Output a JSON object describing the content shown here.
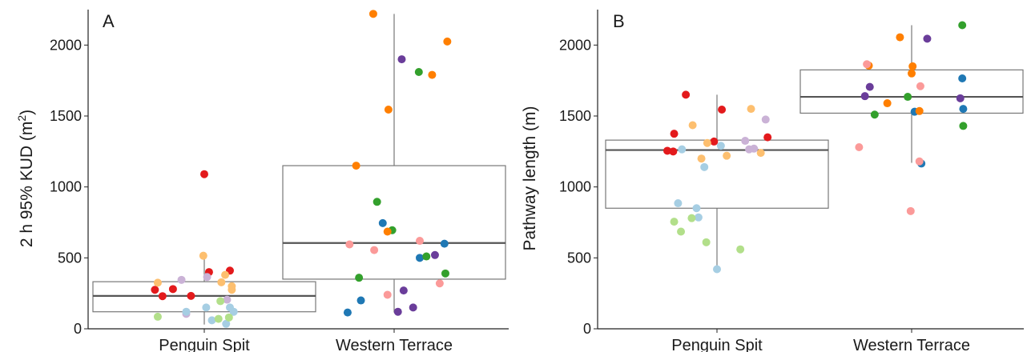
{
  "chart_data": [
    {
      "type": "box",
      "panel_label": "A",
      "ylabel": "2 h 95% KUD (m²)",
      "xlabel": "",
      "ylim": [
        0,
        2250
      ],
      "yticks": [
        0,
        500,
        1000,
        1500,
        2000
      ],
      "grid": false,
      "categories": [
        "Penguin Spit",
        "Western Terrace"
      ],
      "boxes": [
        {
          "category": "Penguin Spit",
          "q1": 120,
          "median": 232,
          "q3": 332,
          "whisker_low": 30,
          "whisker_high": 515
        },
        {
          "category": "Western Terrace",
          "q1": 350,
          "median": 605,
          "q3": 1150,
          "whisker_low": 115,
          "whisker_high": 2220
        }
      ],
      "points": [
        {
          "category": "Penguin Spit",
          "jitter": -0.52,
          "y": 275,
          "color": "#e31a1c"
        },
        {
          "category": "Penguin Spit",
          "jitter": -0.44,
          "y": 230,
          "color": "#e31a1c"
        },
        {
          "category": "Penguin Spit",
          "jitter": -0.33,
          "y": 280,
          "color": "#e31a1c"
        },
        {
          "category": "Penguin Spit",
          "jitter": 0.0,
          "y": 1090,
          "color": "#e31a1c"
        },
        {
          "category": "Penguin Spit",
          "jitter": 0.05,
          "y": 400,
          "color": "#e31a1c"
        },
        {
          "category": "Penguin Spit",
          "jitter": 0.27,
          "y": 410,
          "color": "#e31a1c"
        },
        {
          "category": "Penguin Spit",
          "jitter": -0.14,
          "y": 232,
          "color": "#e31a1c"
        },
        {
          "category": "Penguin Spit",
          "jitter": -0.49,
          "y": 325,
          "color": "#fdbf6f"
        },
        {
          "category": "Penguin Spit",
          "jitter": -0.01,
          "y": 515,
          "color": "#fdbf6f"
        },
        {
          "category": "Penguin Spit",
          "jitter": 0.18,
          "y": 328,
          "color": "#fdbf6f"
        },
        {
          "category": "Penguin Spit",
          "jitter": 0.22,
          "y": 380,
          "color": "#fdbf6f"
        },
        {
          "category": "Penguin Spit",
          "jitter": 0.29,
          "y": 275,
          "color": "#fdbf6f"
        },
        {
          "category": "Penguin Spit",
          "jitter": 0.29,
          "y": 300,
          "color": "#fdbf6f"
        },
        {
          "category": "Penguin Spit",
          "jitter": -0.24,
          "y": 345,
          "color": "#cab2d6"
        },
        {
          "category": "Penguin Spit",
          "jitter": 0.03,
          "y": 365,
          "color": "#cab2d6"
        },
        {
          "category": "Penguin Spit",
          "jitter": 0.24,
          "y": 205,
          "color": "#cab2d6"
        },
        {
          "category": "Penguin Spit",
          "jitter": -0.19,
          "y": 105,
          "color": "#cab2d6"
        },
        {
          "category": "Penguin Spit",
          "jitter": -0.19,
          "y": 120,
          "color": "#a6cee3"
        },
        {
          "category": "Penguin Spit",
          "jitter": 0.02,
          "y": 150,
          "color": "#a6cee3"
        },
        {
          "category": "Penguin Spit",
          "jitter": 0.08,
          "y": 60,
          "color": "#a6cee3"
        },
        {
          "category": "Penguin Spit",
          "jitter": 0.23,
          "y": 35,
          "color": "#a6cee3"
        },
        {
          "category": "Penguin Spit",
          "jitter": 0.27,
          "y": 150,
          "color": "#a6cee3"
        },
        {
          "category": "Penguin Spit",
          "jitter": 0.31,
          "y": 120,
          "color": "#a6cee3"
        },
        {
          "category": "Penguin Spit",
          "jitter": -0.49,
          "y": 85,
          "color": "#b2df8a"
        },
        {
          "category": "Penguin Spit",
          "jitter": 0.15,
          "y": 70,
          "color": "#b2df8a"
        },
        {
          "category": "Penguin Spit",
          "jitter": 0.17,
          "y": 195,
          "color": "#b2df8a"
        },
        {
          "category": "Penguin Spit",
          "jitter": 0.26,
          "y": 80,
          "color": "#b2df8a"
        },
        {
          "category": "Western Terrace",
          "jitter": -0.49,
          "y": 115,
          "color": "#1f78b4"
        },
        {
          "category": "Western Terrace",
          "jitter": -0.35,
          "y": 200,
          "color": "#1f78b4"
        },
        {
          "category": "Western Terrace",
          "jitter": -0.12,
          "y": 745,
          "color": "#1f78b4"
        },
        {
          "category": "Western Terrace",
          "jitter": 0.27,
          "y": 500,
          "color": "#1f78b4"
        },
        {
          "category": "Western Terrace",
          "jitter": 0.53,
          "y": 600,
          "color": "#1f78b4"
        },
        {
          "category": "Western Terrace",
          "jitter": -0.37,
          "y": 360,
          "color": "#33a02c"
        },
        {
          "category": "Western Terrace",
          "jitter": -0.18,
          "y": 895,
          "color": "#33a02c"
        },
        {
          "category": "Western Terrace",
          "jitter": -0.02,
          "y": 695,
          "color": "#33a02c"
        },
        {
          "category": "Western Terrace",
          "jitter": 0.26,
          "y": 1810,
          "color": "#33a02c"
        },
        {
          "category": "Western Terrace",
          "jitter": 0.34,
          "y": 510,
          "color": "#33a02c"
        },
        {
          "category": "Western Terrace",
          "jitter": 0.54,
          "y": 390,
          "color": "#33a02c"
        },
        {
          "category": "Western Terrace",
          "jitter": -0.4,
          "y": 1150,
          "color": "#ff7f00"
        },
        {
          "category": "Western Terrace",
          "jitter": -0.22,
          "y": 2220,
          "color": "#ff7f00"
        },
        {
          "category": "Western Terrace",
          "jitter": -0.06,
          "y": 1545,
          "color": "#ff7f00"
        },
        {
          "category": "Western Terrace",
          "jitter": -0.07,
          "y": 685,
          "color": "#ff7f00"
        },
        {
          "category": "Western Terrace",
          "jitter": 0.4,
          "y": 1790,
          "color": "#ff7f00"
        },
        {
          "category": "Western Terrace",
          "jitter": 0.56,
          "y": 2025,
          "color": "#ff7f00"
        },
        {
          "category": "Western Terrace",
          "jitter": 0.08,
          "y": 1900,
          "color": "#6a3d9a"
        },
        {
          "category": "Western Terrace",
          "jitter": 0.1,
          "y": 270,
          "color": "#6a3d9a"
        },
        {
          "category": "Western Terrace",
          "jitter": 0.2,
          "y": 150,
          "color": "#6a3d9a"
        },
        {
          "category": "Western Terrace",
          "jitter": 0.04,
          "y": 120,
          "color": "#6a3d9a"
        },
        {
          "category": "Western Terrace",
          "jitter": 0.43,
          "y": 520,
          "color": "#6a3d9a"
        },
        {
          "category": "Western Terrace",
          "jitter": -0.47,
          "y": 595,
          "color": "#fb9a99"
        },
        {
          "category": "Western Terrace",
          "jitter": -0.21,
          "y": 555,
          "color": "#fb9a99"
        },
        {
          "category": "Western Terrace",
          "jitter": -0.07,
          "y": 240,
          "color": "#fb9a99"
        },
        {
          "category": "Western Terrace",
          "jitter": 0.27,
          "y": 620,
          "color": "#fb9a99"
        },
        {
          "category": "Western Terrace",
          "jitter": 0.48,
          "y": 320,
          "color": "#fb9a99"
        }
      ]
    },
    {
      "type": "box",
      "panel_label": "B",
      "ylabel": "Pathway length (m)",
      "xlabel": "",
      "ylim": [
        0,
        2250
      ],
      "yticks": [
        0,
        500,
        1000,
        1500,
        2000
      ],
      "grid": false,
      "categories": [
        "Penguin Spit",
        "Western Terrace"
      ],
      "boxes": [
        {
          "category": "Penguin Spit",
          "q1": 850,
          "median": 1260,
          "q3": 1330,
          "whisker_low": 420,
          "whisker_high": 1650
        },
        {
          "category": "Western Terrace",
          "q1": 1520,
          "median": 1635,
          "q3": 1825,
          "whisker_low": 1170,
          "whisker_high": 2140
        }
      ],
      "points": [
        {
          "category": "Penguin Spit",
          "jitter": -0.51,
          "y": 1255,
          "color": "#e31a1c"
        },
        {
          "category": "Penguin Spit",
          "jitter": -0.45,
          "y": 1250,
          "color": "#e31a1c"
        },
        {
          "category": "Penguin Spit",
          "jitter": -0.44,
          "y": 1375,
          "color": "#e31a1c"
        },
        {
          "category": "Penguin Spit",
          "jitter": -0.32,
          "y": 1650,
          "color": "#e31a1c"
        },
        {
          "category": "Penguin Spit",
          "jitter": -0.03,
          "y": 1320,
          "color": "#e31a1c"
        },
        {
          "category": "Penguin Spit",
          "jitter": 0.05,
          "y": 1545,
          "color": "#e31a1c"
        },
        {
          "category": "Penguin Spit",
          "jitter": 0.52,
          "y": 1350,
          "color": "#e31a1c"
        },
        {
          "category": "Penguin Spit",
          "jitter": -0.25,
          "y": 1435,
          "color": "#fdbf6f"
        },
        {
          "category": "Penguin Spit",
          "jitter": -0.16,
          "y": 1200,
          "color": "#fdbf6f"
        },
        {
          "category": "Penguin Spit",
          "jitter": -0.1,
          "y": 1310,
          "color": "#fdbf6f"
        },
        {
          "category": "Penguin Spit",
          "jitter": 0.1,
          "y": 1220,
          "color": "#fdbf6f"
        },
        {
          "category": "Penguin Spit",
          "jitter": 0.35,
          "y": 1550,
          "color": "#fdbf6f"
        },
        {
          "category": "Penguin Spit",
          "jitter": 0.45,
          "y": 1240,
          "color": "#fdbf6f"
        },
        {
          "category": "Penguin Spit",
          "jitter": 0.29,
          "y": 1325,
          "color": "#cab2d6"
        },
        {
          "category": "Penguin Spit",
          "jitter": 0.33,
          "y": 1265,
          "color": "#cab2d6"
        },
        {
          "category": "Penguin Spit",
          "jitter": 0.38,
          "y": 1270,
          "color": "#cab2d6"
        },
        {
          "category": "Penguin Spit",
          "jitter": 0.5,
          "y": 1475,
          "color": "#cab2d6"
        },
        {
          "category": "Penguin Spit",
          "jitter": -0.36,
          "y": 1265,
          "color": "#a6cee3"
        },
        {
          "category": "Penguin Spit",
          "jitter": -0.4,
          "y": 885,
          "color": "#a6cee3"
        },
        {
          "category": "Penguin Spit",
          "jitter": -0.13,
          "y": 1140,
          "color": "#a6cee3"
        },
        {
          "category": "Penguin Spit",
          "jitter": -0.21,
          "y": 850,
          "color": "#a6cee3"
        },
        {
          "category": "Penguin Spit",
          "jitter": -0.19,
          "y": 785,
          "color": "#a6cee3"
        },
        {
          "category": "Penguin Spit",
          "jitter": 0.04,
          "y": 1290,
          "color": "#a6cee3"
        },
        {
          "category": "Penguin Spit",
          "jitter": 0.0,
          "y": 420,
          "color": "#a6cee3"
        },
        {
          "category": "Penguin Spit",
          "jitter": -0.44,
          "y": 755,
          "color": "#b2df8a"
        },
        {
          "category": "Penguin Spit",
          "jitter": -0.37,
          "y": 685,
          "color": "#b2df8a"
        },
        {
          "category": "Penguin Spit",
          "jitter": -0.26,
          "y": 780,
          "color": "#b2df8a"
        },
        {
          "category": "Penguin Spit",
          "jitter": -0.11,
          "y": 610,
          "color": "#b2df8a"
        },
        {
          "category": "Penguin Spit",
          "jitter": 0.24,
          "y": 560,
          "color": "#b2df8a"
        },
        {
          "category": "Western Terrace",
          "jitter": 0.1,
          "y": 1165,
          "color": "#1f78b4"
        },
        {
          "category": "Western Terrace",
          "jitter": 0.03,
          "y": 1530,
          "color": "#1f78b4"
        },
        {
          "category": "Western Terrace",
          "jitter": 0.52,
          "y": 1765,
          "color": "#1f78b4"
        },
        {
          "category": "Western Terrace",
          "jitter": 0.53,
          "y": 1550,
          "color": "#1f78b4"
        },
        {
          "category": "Western Terrace",
          "jitter": -0.38,
          "y": 1510,
          "color": "#33a02c"
        },
        {
          "category": "Western Terrace",
          "jitter": -0.04,
          "y": 1635,
          "color": "#33a02c"
        },
        {
          "category": "Western Terrace",
          "jitter": 0.52,
          "y": 2140,
          "color": "#33a02c"
        },
        {
          "category": "Western Terrace",
          "jitter": 0.53,
          "y": 1430,
          "color": "#33a02c"
        },
        {
          "category": "Western Terrace",
          "jitter": -0.44,
          "y": 1855,
          "color": "#ff7f00"
        },
        {
          "category": "Western Terrace",
          "jitter": -0.25,
          "y": 1590,
          "color": "#ff7f00"
        },
        {
          "category": "Western Terrace",
          "jitter": 0.0,
          "y": 1800,
          "color": "#ff7f00"
        },
        {
          "category": "Western Terrace",
          "jitter": 0.01,
          "y": 1850,
          "color": "#ff7f00"
        },
        {
          "category": "Western Terrace",
          "jitter": 0.08,
          "y": 1535,
          "color": "#ff7f00"
        },
        {
          "category": "Western Terrace",
          "jitter": -0.12,
          "y": 2055,
          "color": "#ff7f00"
        },
        {
          "category": "Western Terrace",
          "jitter": -0.48,
          "y": 1640,
          "color": "#6a3d9a"
        },
        {
          "category": "Western Terrace",
          "jitter": -0.43,
          "y": 1705,
          "color": "#6a3d9a"
        },
        {
          "category": "Western Terrace",
          "jitter": 0.16,
          "y": 2045,
          "color": "#6a3d9a"
        },
        {
          "category": "Western Terrace",
          "jitter": 0.5,
          "y": 1625,
          "color": "#6a3d9a"
        },
        {
          "category": "Western Terrace",
          "jitter": -0.46,
          "y": 1865,
          "color": "#fb9a99"
        },
        {
          "category": "Western Terrace",
          "jitter": -0.54,
          "y": 1280,
          "color": "#fb9a99"
        },
        {
          "category": "Western Terrace",
          "jitter": -0.01,
          "y": 830,
          "color": "#fb9a99"
        },
        {
          "category": "Western Terrace",
          "jitter": 0.08,
          "y": 1180,
          "color": "#fb9a99"
        },
        {
          "category": "Western Terrace",
          "jitter": 0.09,
          "y": 1710,
          "color": "#fb9a99"
        }
      ]
    }
  ]
}
